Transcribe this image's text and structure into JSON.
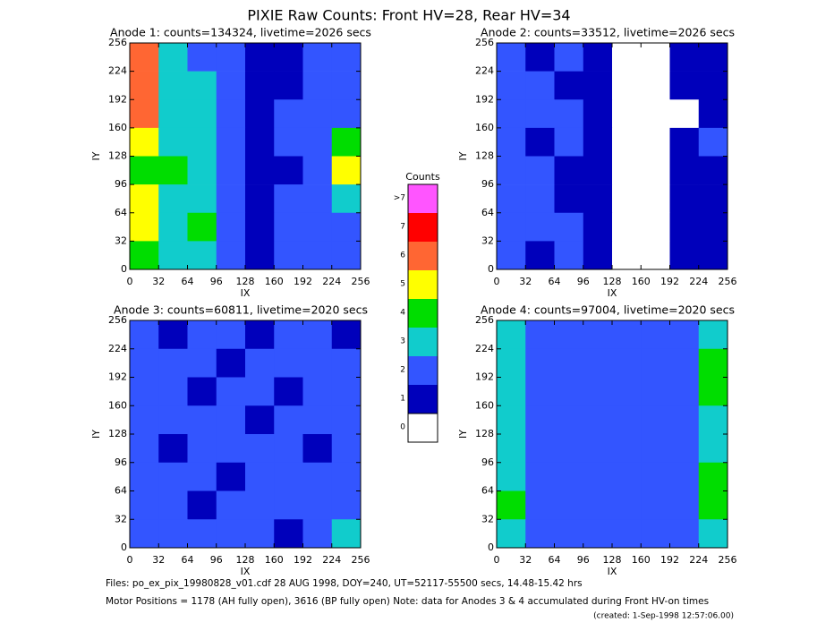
{
  "title": "PIXIE Raw Counts:  Front HV=28, Rear HV=34",
  "chart_data": [
    {
      "type": "heatmap",
      "title": "Anode 1: counts=134324, livetime=2026 secs",
      "x_label": "IX",
      "y_label": "IY",
      "xlim": [
        0,
        256
      ],
      "ylim": [
        0,
        256
      ],
      "xticks": [
        0,
        32,
        64,
        96,
        128,
        160,
        192,
        224,
        256
      ],
      "yticks": [
        0,
        32,
        64,
        96,
        128,
        160,
        192,
        224,
        256
      ],
      "values": [
        [
          6,
          3,
          2,
          2,
          1,
          1,
          2,
          2
        ],
        [
          6,
          3,
          3,
          2,
          1,
          1,
          2,
          2
        ],
        [
          6,
          3,
          3,
          2,
          1,
          2,
          2,
          2
        ],
        [
          5,
          3,
          3,
          2,
          1,
          2,
          2,
          4
        ],
        [
          4,
          4,
          3,
          2,
          1,
          1,
          2,
          5
        ],
        [
          5,
          3,
          3,
          2,
          1,
          2,
          2,
          3
        ],
        [
          5,
          3,
          4,
          2,
          1,
          2,
          2,
          2
        ],
        [
          4,
          3,
          3,
          2,
          1,
          2,
          2,
          2
        ]
      ]
    },
    {
      "type": "heatmap",
      "title": "Anode 2: counts=33512, livetime=2026 secs",
      "x_label": "IX",
      "y_label": "IY",
      "xlim": [
        0,
        256
      ],
      "ylim": [
        0,
        256
      ],
      "xticks": [
        0,
        32,
        64,
        96,
        128,
        160,
        192,
        224,
        256
      ],
      "yticks": [
        0,
        32,
        64,
        96,
        128,
        160,
        192,
        224,
        256
      ],
      "values": [
        [
          2,
          1,
          2,
          1,
          0,
          0,
          1,
          1
        ],
        [
          2,
          2,
          1,
          1,
          0,
          0,
          1,
          1
        ],
        [
          2,
          2,
          2,
          1,
          0,
          0,
          0,
          1
        ],
        [
          2,
          1,
          2,
          1,
          0,
          0,
          1,
          2
        ],
        [
          2,
          2,
          1,
          1,
          0,
          0,
          1,
          1
        ],
        [
          2,
          2,
          1,
          1,
          0,
          0,
          1,
          1
        ],
        [
          2,
          2,
          2,
          1,
          0,
          0,
          1,
          1
        ],
        [
          2,
          1,
          2,
          1,
          0,
          0,
          1,
          1
        ]
      ]
    },
    {
      "type": "heatmap",
      "title": "Anode 3: counts=60811, livetime=2020 secs",
      "x_label": "IX",
      "y_label": "IY",
      "xlim": [
        0,
        256
      ],
      "ylim": [
        0,
        256
      ],
      "xticks": [
        0,
        32,
        64,
        96,
        128,
        160,
        192,
        224,
        256
      ],
      "yticks": [
        0,
        32,
        64,
        96,
        128,
        160,
        192,
        224,
        256
      ],
      "values": [
        [
          2,
          1,
          2,
          2,
          1,
          2,
          2,
          1
        ],
        [
          2,
          2,
          2,
          1,
          2,
          2,
          2,
          2
        ],
        [
          2,
          2,
          1,
          2,
          2,
          1,
          2,
          2
        ],
        [
          2,
          2,
          2,
          2,
          1,
          2,
          2,
          2
        ],
        [
          2,
          1,
          2,
          2,
          2,
          2,
          1,
          2
        ],
        [
          2,
          2,
          2,
          1,
          2,
          2,
          2,
          2
        ],
        [
          2,
          2,
          1,
          2,
          2,
          2,
          2,
          2
        ],
        [
          2,
          2,
          2,
          2,
          2,
          1,
          2,
          3
        ]
      ]
    },
    {
      "type": "heatmap",
      "title": "Anode 4: counts=97004, livetime=2020 secs",
      "x_label": "IX",
      "y_label": "IY",
      "xlim": [
        0,
        256
      ],
      "ylim": [
        0,
        256
      ],
      "xticks": [
        0,
        32,
        64,
        96,
        128,
        160,
        192,
        224,
        256
      ],
      "yticks": [
        0,
        32,
        64,
        96,
        128,
        160,
        192,
        224,
        256
      ],
      "values": [
        [
          3,
          2,
          2,
          2,
          2,
          2,
          2,
          3
        ],
        [
          3,
          2,
          2,
          2,
          2,
          2,
          2,
          4
        ],
        [
          3,
          2,
          2,
          2,
          2,
          2,
          2,
          4
        ],
        [
          3,
          2,
          2,
          2,
          2,
          2,
          2,
          3
        ],
        [
          3,
          2,
          2,
          2,
          2,
          2,
          2,
          3
        ],
        [
          3,
          2,
          2,
          2,
          2,
          2,
          2,
          4
        ],
        [
          4,
          2,
          2,
          2,
          2,
          2,
          2,
          4
        ],
        [
          3,
          2,
          2,
          2,
          2,
          2,
          2,
          3
        ]
      ]
    }
  ],
  "colorbar": {
    "title": "Counts",
    "labels": [
      ">7",
      "7",
      "6",
      "5",
      "4",
      "3",
      "2",
      "1",
      "0"
    ],
    "colors": [
      "#ff55ff",
      "#ff0000",
      "#ff6633",
      "#ffff00",
      "#00dd00",
      "#11cccc",
      "#3355ff",
      "#0000bb",
      "#ffffff"
    ]
  },
  "footer": {
    "files": "Files: po_ex_pix_19980828_v01.cdf     28 AUG 1998, DOY=240, UT=52117-55500 secs, 14.48-15.42 hrs",
    "motor": "Motor Positions = 1178 (AH fully open), 3616 (BP fully open)     Note: data for Anodes 3 & 4 accumulated during Front HV-on times",
    "created": "(created:  1-Sep-1998 12:57:06.00)"
  }
}
